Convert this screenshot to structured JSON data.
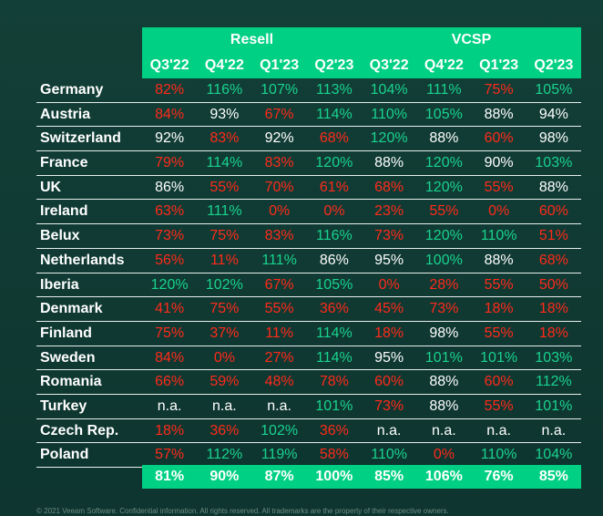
{
  "chart_data": {
    "type": "table",
    "column_groups": [
      "Resell",
      "VCSP"
    ],
    "quarters": [
      "Q3'22",
      "Q4'22",
      "Q1'23",
      "Q2'23",
      "Q3'22",
      "Q4'22",
      "Q1'23",
      "Q2'23"
    ],
    "rows": [
      {
        "country": "Germany",
        "values": [
          "82%",
          "116%",
          "107%",
          "113%",
          "104%",
          "111%",
          "75%",
          "105%"
        ],
        "colors": [
          "red",
          "green",
          "green",
          "green",
          "green",
          "green",
          "red",
          "green"
        ]
      },
      {
        "country": "Austria",
        "values": [
          "84%",
          "93%",
          "67%",
          "114%",
          "110%",
          "105%",
          "88%",
          "94%"
        ],
        "colors": [
          "red",
          "white",
          "red",
          "green",
          "green",
          "green",
          "white",
          "white"
        ]
      },
      {
        "country": "Switzerland",
        "values": [
          "92%",
          "83%",
          "92%",
          "68%",
          "120%",
          "88%",
          "60%",
          "98%"
        ],
        "colors": [
          "white",
          "red",
          "white",
          "red",
          "green",
          "white",
          "red",
          "white"
        ]
      },
      {
        "country": "France",
        "values": [
          "79%",
          "114%",
          "83%",
          "120%",
          "88%",
          "120%",
          "90%",
          "103%"
        ],
        "colors": [
          "red",
          "green",
          "red",
          "green",
          "white",
          "green",
          "white",
          "green"
        ]
      },
      {
        "country": "UK",
        "values": [
          "86%",
          "55%",
          "70%",
          "61%",
          "68%",
          "120%",
          "55%",
          "88%"
        ],
        "colors": [
          "white",
          "red",
          "red",
          "red",
          "red",
          "green",
          "red",
          "white"
        ]
      },
      {
        "country": "Ireland",
        "values": [
          "63%",
          "111%",
          "0%",
          "0%",
          "23%",
          "55%",
          "0%",
          "60%"
        ],
        "colors": [
          "red",
          "green",
          "red",
          "red",
          "red",
          "red",
          "red",
          "red"
        ]
      },
      {
        "country": "Belux",
        "values": [
          "73%",
          "75%",
          "83%",
          "116%",
          "73%",
          "120%",
          "110%",
          "51%"
        ],
        "colors": [
          "red",
          "red",
          "red",
          "green",
          "red",
          "green",
          "green",
          "red"
        ]
      },
      {
        "country": "Netherlands",
        "values": [
          "56%",
          "11%",
          "111%",
          "86%",
          "95%",
          "100%",
          "88%",
          "68%"
        ],
        "colors": [
          "red",
          "red",
          "green",
          "white",
          "white",
          "green",
          "white",
          "red"
        ]
      },
      {
        "country": "Iberia",
        "values": [
          "120%",
          "102%",
          "67%",
          "105%",
          "0%",
          "28%",
          "55%",
          "50%"
        ],
        "colors": [
          "green",
          "green",
          "red",
          "green",
          "red",
          "red",
          "red",
          "red"
        ]
      },
      {
        "country": "Denmark",
        "values": [
          "41%",
          "75%",
          "55%",
          "36%",
          "45%",
          "73%",
          "18%",
          "18%"
        ],
        "colors": [
          "red",
          "red",
          "red",
          "red",
          "red",
          "red",
          "red",
          "red"
        ]
      },
      {
        "country": "Finland",
        "values": [
          "75%",
          "37%",
          "11%",
          "114%",
          "18%",
          "98%",
          "55%",
          "18%"
        ],
        "colors": [
          "red",
          "red",
          "red",
          "green",
          "red",
          "white",
          "red",
          "red"
        ]
      },
      {
        "country": "Sweden",
        "values": [
          "84%",
          "0%",
          "27%",
          "114%",
          "95%",
          "101%",
          "101%",
          "103%"
        ],
        "colors": [
          "red",
          "red",
          "red",
          "green",
          "white",
          "green",
          "green",
          "green"
        ]
      },
      {
        "country": "Romania",
        "values": [
          "66%",
          "59%",
          "48%",
          "78%",
          "60%",
          "88%",
          "60%",
          "112%"
        ],
        "colors": [
          "red",
          "red",
          "red",
          "red",
          "red",
          "white",
          "red",
          "green"
        ]
      },
      {
        "country": "Turkey",
        "values": [
          "n.a.",
          "n.a.",
          "n.a.",
          "101%",
          "73%",
          "88%",
          "55%",
          "101%"
        ],
        "colors": [
          "white",
          "white",
          "white",
          "green",
          "red",
          "white",
          "red",
          "green"
        ]
      },
      {
        "country": "Czech Rep.",
        "values": [
          "18%",
          "36%",
          "102%",
          "36%",
          "n.a.",
          "n.a.",
          "n.a.",
          "n.a."
        ],
        "colors": [
          "red",
          "red",
          "green",
          "red",
          "white",
          "white",
          "white",
          "white"
        ]
      },
      {
        "country": "Poland",
        "values": [
          "57%",
          "112%",
          "119%",
          "58%",
          "110%",
          "0%",
          "110%",
          "104%"
        ],
        "colors": [
          "red",
          "green",
          "green",
          "red",
          "green",
          "red",
          "green",
          "green"
        ]
      }
    ],
    "totals": [
      "81%",
      "90%",
      "87%",
      "100%",
      "85%",
      "106%",
      "76%",
      "85%"
    ],
    "colors": {
      "red": "#ff2a1a",
      "green": "#19d38e",
      "white": "#ffffff",
      "header": "#00d084"
    }
  },
  "footer": "© 2021 Veeam Software. Confidential information. All rights reserved. All trademarks are the property of their respective owners."
}
